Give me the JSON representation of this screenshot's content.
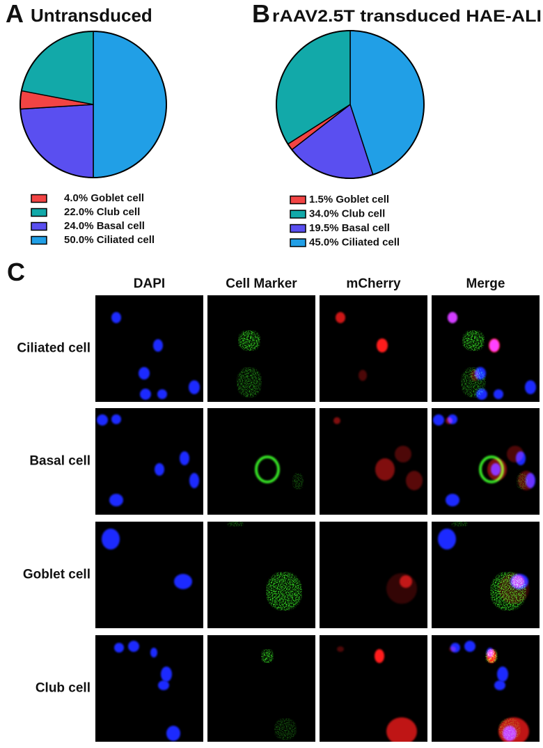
{
  "chart_data": [
    {
      "type": "pie",
      "panel": "A",
      "title": "Untransduced",
      "categories": [
        "Goblet cell",
        "Club cell",
        "Basal cell",
        "Ciliated cell"
      ],
      "values": [
        4.0,
        22.0,
        24.0,
        50.0
      ],
      "value_labels": [
        "4.0%",
        "22.0%",
        "24.0%",
        "50.0%"
      ],
      "colors": [
        "#f24444",
        "#12a9a9",
        "#5a4ff0",
        "#219fe6"
      ]
    },
    {
      "type": "pie",
      "panel": "B",
      "title": "rAAV2.5T transduced HAE-ALI",
      "categories": [
        "Goblet cell",
        "Club cell",
        "Basal cell",
        "Ciliated cell"
      ],
      "values": [
        1.5,
        34.0,
        19.5,
        45.0
      ],
      "value_labels": [
        "1.5%",
        "34.0%",
        "19.5%",
        "45.0%"
      ],
      "colors": [
        "#f24444",
        "#12a9a9",
        "#5a4ff0",
        "#219fe6"
      ]
    }
  ],
  "panel_c": {
    "panel": "C",
    "columns": [
      "DAPI",
      "Cell Marker",
      "mCherry",
      "Merge"
    ],
    "rows": [
      "Ciliated cell",
      "Basal cell",
      "Goblet cell",
      "Club cell"
    ]
  }
}
